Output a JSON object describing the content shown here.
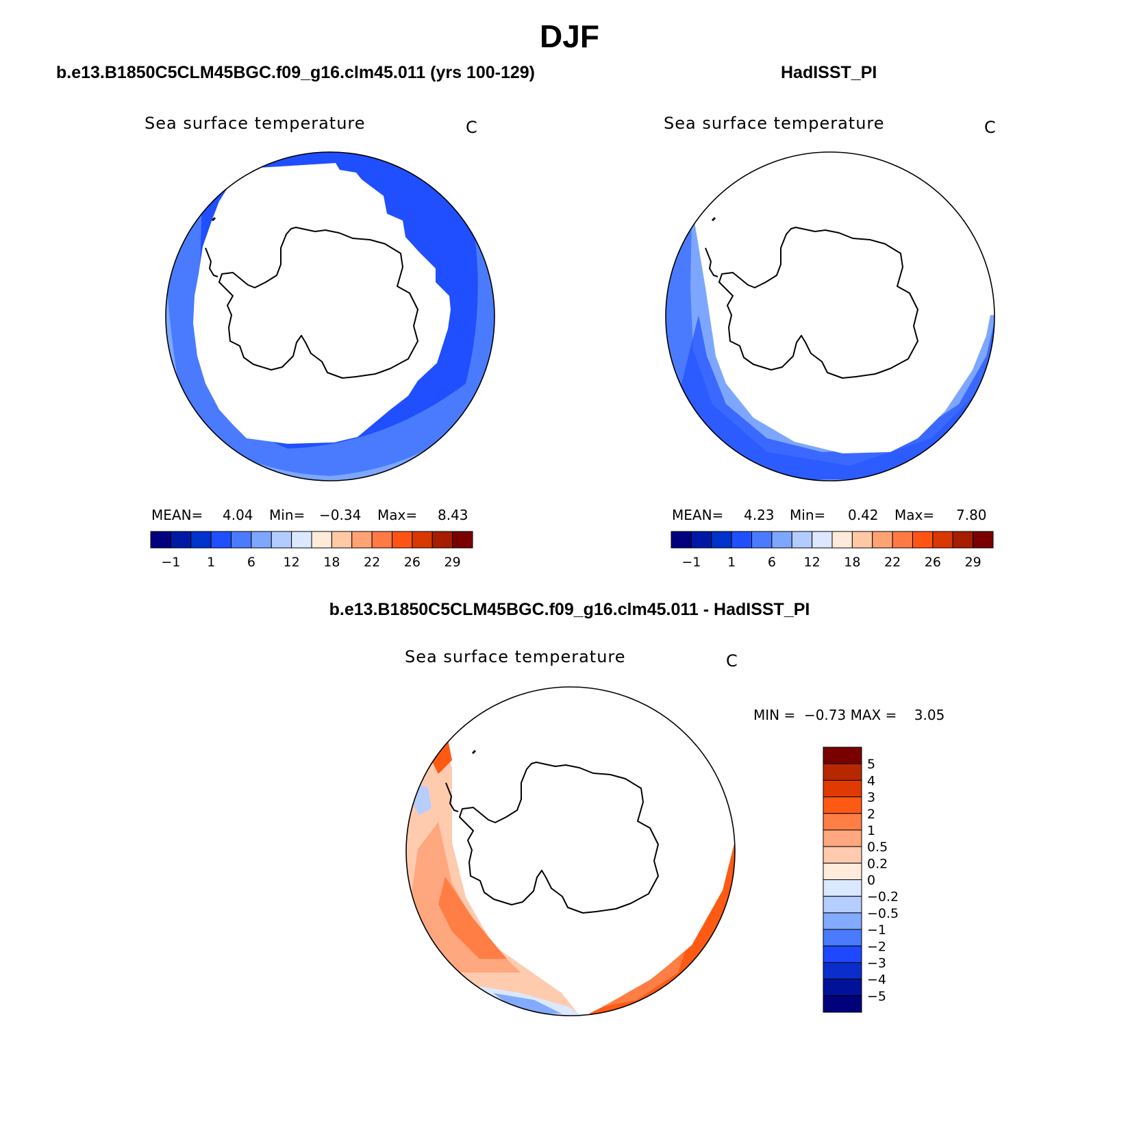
{
  "figure": {
    "title": "DJF",
    "panel_left_title": "b.e13.B1850C5CLM45BGC.f09_g16.clm45.011 (yrs 100-129)",
    "panel_right_title": "HadISST_PI",
    "diff_title": "b.e13.B1850C5CLM45BGC.f09_g16.clm45.011 - HadISST_PI"
  },
  "panels": {
    "left": {
      "variable": "Sea surface temperature",
      "units": "C",
      "mean_label": "MEAN=",
      "mean": "4.04",
      "min_label": "Min=",
      "min": "−0.34",
      "max_label": "Max=",
      "max": "8.43"
    },
    "right": {
      "variable": "Sea surface temperature",
      "units": "C",
      "mean_label": "MEAN=",
      "mean": "4.23",
      "min_label": "Min=",
      "min": "0.42",
      "max_label": "Max=",
      "max": "7.80"
    },
    "diff": {
      "variable": "Sea surface temperature",
      "units": "C",
      "minmax_text": "MIN =  −0.73 MAX =    3.05"
    }
  },
  "chart_data": [
    {
      "type": "heatmap",
      "title": "Sea surface temperature",
      "units": "C",
      "projection": "south polar stereographic",
      "stats": {
        "mean": 4.04,
        "min": -0.34,
        "max": 8.43
      },
      "colorbar": {
        "orientation": "horizontal",
        "levels": [
          "−1",
          "1",
          "6",
          "12",
          "18",
          "22",
          "26",
          "29"
        ],
        "colors": [
          "#00007f",
          "#0019a5",
          "#0032cc",
          "#1f4fff",
          "#4a7bff",
          "#7da7ff",
          "#b3ccff",
          "#dbe8ff",
          "#ffebd9",
          "#ffc9a6",
          "#ffa274",
          "#ff7a45",
          "#ff5414",
          "#d93800",
          "#a61e00",
          "#7a0000"
        ]
      }
    },
    {
      "type": "heatmap",
      "title": "Sea surface temperature",
      "units": "C",
      "projection": "south polar stereographic",
      "stats": {
        "mean": 4.23,
        "min": 0.42,
        "max": 7.8
      },
      "colorbar": {
        "orientation": "horizontal",
        "levels": [
          "−1",
          "1",
          "6",
          "12",
          "18",
          "22",
          "26",
          "29"
        ],
        "colors": [
          "#00007f",
          "#0019a5",
          "#0032cc",
          "#1f4fff",
          "#4a7bff",
          "#7da7ff",
          "#b3ccff",
          "#dbe8ff",
          "#ffebd9",
          "#ffc9a6",
          "#ffa274",
          "#ff7a45",
          "#ff5414",
          "#d93800",
          "#a61e00",
          "#7a0000"
        ]
      }
    },
    {
      "type": "heatmap",
      "title": "Sea surface temperature",
      "units": "C",
      "projection": "south polar stereographic",
      "stats": {
        "min": -0.73,
        "max": 3.05
      },
      "colorbar": {
        "orientation": "vertical",
        "levels": [
          "5",
          "4",
          "3",
          "2",
          "1",
          "0.5",
          "0.2",
          "0",
          "−0.2",
          "−0.5",
          "−1",
          "−2",
          "−3",
          "−4",
          "−5"
        ],
        "colors": [
          "#7a0000",
          "#b82800",
          "#e03a00",
          "#ff5a14",
          "#ff7e45",
          "#ffa77e",
          "#ffcbaf",
          "#ffebdc",
          "#dae9ff",
          "#b5cdff",
          "#82aaff",
          "#4a7bff",
          "#1d48ff",
          "#0a2dcc",
          "#00129a",
          "#00007a"
        ]
      }
    }
  ]
}
